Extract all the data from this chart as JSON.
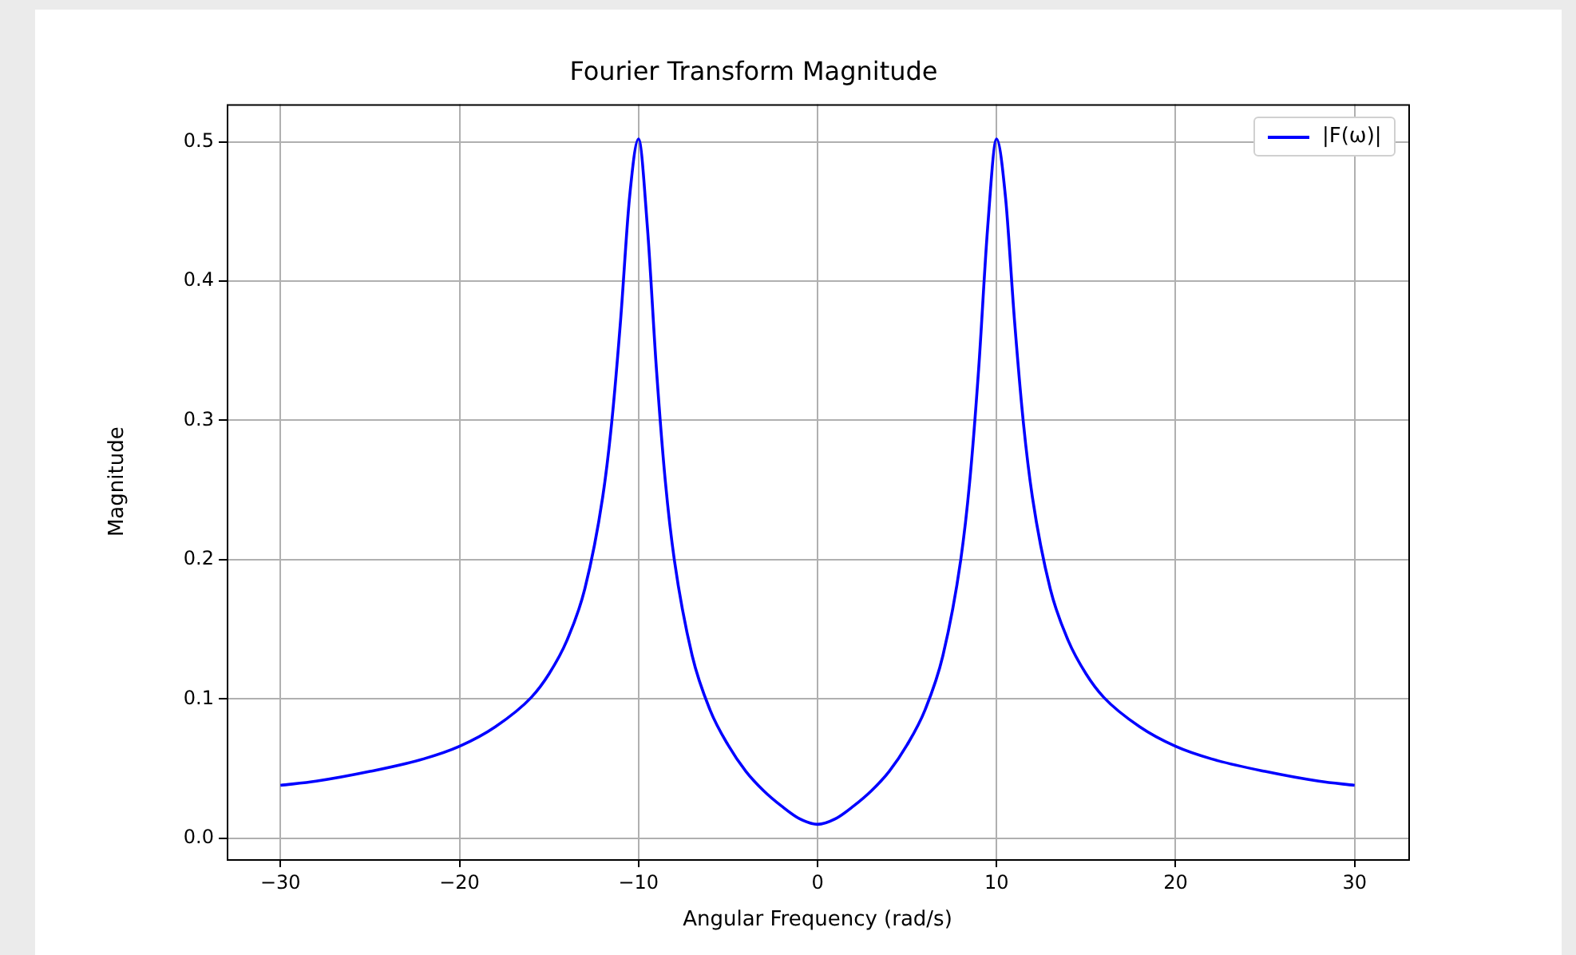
{
  "chart_data": {
    "type": "line",
    "title": "Fourier Transform Magnitude",
    "xlabel": "Angular Frequency (rad/s)",
    "ylabel": "Magnitude",
    "x": [
      -30,
      -28,
      -25,
      -22,
      -20,
      -18,
      -16,
      -15,
      -14,
      -13,
      -12,
      -11.5,
      -11,
      -10.5,
      -10,
      -9.5,
      -9,
      -8.5,
      -8,
      -7,
      -6,
      -5,
      -4,
      -3,
      -2,
      -1,
      0,
      1,
      2,
      3,
      4,
      5,
      6,
      7,
      8,
      8.5,
      9,
      9.5,
      10,
      10.5,
      11,
      11.5,
      12,
      13,
      14,
      15,
      16,
      18,
      20,
      22,
      25,
      28,
      30
    ],
    "series": [
      {
        "name": "|F(ω)|",
        "color": "#0000ff",
        "values": [
          0.038,
          0.041,
          0.048,
          0.057,
          0.066,
          0.08,
          0.101,
          0.118,
          0.142,
          0.179,
          0.245,
          0.298,
          0.372,
          0.46,
          0.502,
          0.438,
          0.337,
          0.256,
          0.2,
          0.131,
          0.092,
          0.067,
          0.048,
          0.034,
          0.023,
          0.014,
          0.01,
          0.014,
          0.023,
          0.034,
          0.048,
          0.067,
          0.092,
          0.131,
          0.2,
          0.256,
          0.337,
          0.438,
          0.502,
          0.46,
          0.372,
          0.298,
          0.245,
          0.179,
          0.142,
          0.118,
          0.101,
          0.08,
          0.066,
          0.057,
          0.048,
          0.041,
          0.038
        ]
      }
    ],
    "xlim": [
      -33,
      33
    ],
    "ylim": [
      -0.015,
      0.527
    ],
    "xticks": [
      {
        "value": -30,
        "label": "−30"
      },
      {
        "value": -20,
        "label": "−20"
      },
      {
        "value": -10,
        "label": "−10"
      },
      0,
      10,
      20,
      30
    ],
    "yticks": [
      {
        "value": 0,
        "label": "0.0"
      },
      0.1,
      0.2,
      0.3,
      0.4,
      0.5
    ],
    "grid": true,
    "legend": "top right",
    "marker": "none",
    "line_style": "solid"
  }
}
